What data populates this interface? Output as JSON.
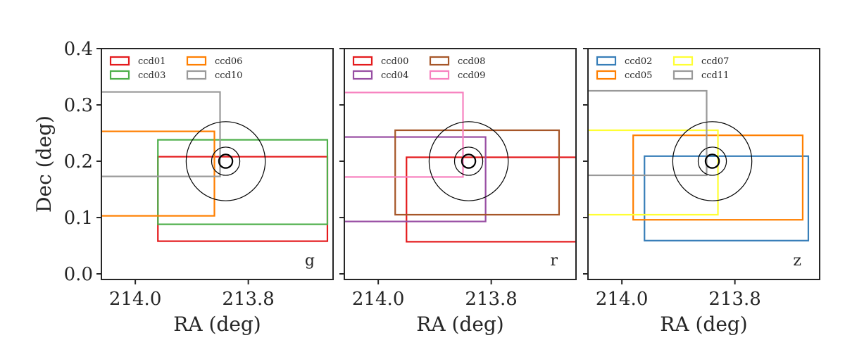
{
  "chart_data": {
    "type": "scatter",
    "xlabel": "RA (deg)",
    "ylabel": "Dec (deg)",
    "xlim": [
      214.06,
      213.65
    ],
    "ylim": [
      -0.01,
      0.4
    ],
    "xticks": [
      {
        "value": 214.0,
        "label": "214.0"
      },
      {
        "value": 213.8,
        "label": "213.8"
      }
    ],
    "yticks": [
      {
        "value": 0.0,
        "label": "0.0"
      },
      {
        "value": 0.1,
        "label": "0.1"
      },
      {
        "value": 0.2,
        "label": "0.2"
      },
      {
        "value": 0.3,
        "label": "0.3"
      },
      {
        "value": 0.4,
        "label": "0.4"
      }
    ],
    "target": {
      "ra": 213.84,
      "dec": 0.2
    },
    "circle_radii_deg": [
      0.012,
      0.025,
      0.07
    ],
    "panels": [
      {
        "band": "g",
        "legend_position": "top-left",
        "ccds": [
          {
            "name": "ccd01",
            "color": "#e41a1c",
            "ra_min": 213.66,
            "ra_max": 213.96,
            "dec_min": 0.058,
            "dec_max": 0.208
          },
          {
            "name": "ccd03",
            "color": "#4daf4a",
            "ra_min": 213.66,
            "ra_max": 213.96,
            "dec_min": 0.088,
            "dec_max": 0.238
          },
          {
            "name": "ccd06",
            "color": "#ff7f00",
            "ra_min": 213.86,
            "ra_max": 214.07,
            "dec_min": 0.103,
            "dec_max": 0.253
          },
          {
            "name": "ccd10",
            "color": "#999999",
            "ra_min": 213.85,
            "ra_max": 214.07,
            "dec_min": 0.173,
            "dec_max": 0.323
          }
        ]
      },
      {
        "band": "r",
        "legend_position": "top-left",
        "ccds": [
          {
            "name": "ccd00",
            "color": "#e41a1c",
            "ra_min": 213.65,
            "ra_max": 213.95,
            "dec_min": 0.057,
            "dec_max": 0.207
          },
          {
            "name": "ccd04",
            "color": "#984ea3",
            "ra_min": 213.81,
            "ra_max": 214.07,
            "dec_min": 0.093,
            "dec_max": 0.243
          },
          {
            "name": "ccd08",
            "color": "#a65628",
            "ra_min": 213.68,
            "ra_max": 213.97,
            "dec_min": 0.105,
            "dec_max": 0.255
          },
          {
            "name": "ccd09",
            "color": "#f781bf",
            "ra_min": 213.85,
            "ra_max": 214.07,
            "dec_min": 0.172,
            "dec_max": 0.322
          }
        ]
      },
      {
        "band": "z",
        "legend_position": "top-left",
        "ccds": [
          {
            "name": "ccd02",
            "color": "#377eb8",
            "ra_min": 213.67,
            "ra_max": 213.96,
            "dec_min": 0.059,
            "dec_max": 0.209
          },
          {
            "name": "ccd05",
            "color": "#ff7f00",
            "ra_min": 213.68,
            "ra_max": 213.98,
            "dec_min": 0.096,
            "dec_max": 0.246
          },
          {
            "name": "ccd07",
            "color": "#ffff33",
            "ra_min": 213.83,
            "ra_max": 214.07,
            "dec_min": 0.105,
            "dec_max": 0.255
          },
          {
            "name": "ccd11",
            "color": "#999999",
            "ra_min": 213.85,
            "ra_max": 214.07,
            "dec_min": 0.175,
            "dec_max": 0.325
          }
        ]
      }
    ]
  }
}
